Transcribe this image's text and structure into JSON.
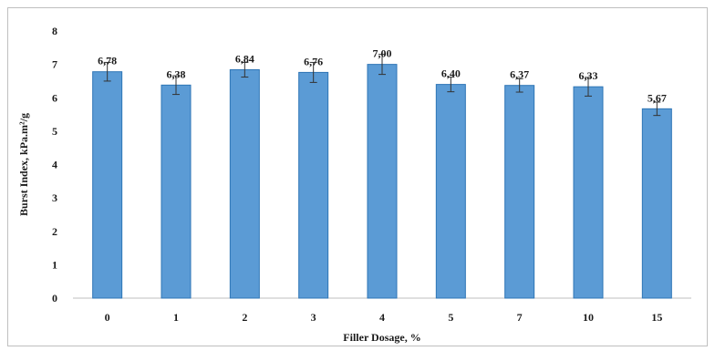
{
  "chart_data": {
    "type": "bar",
    "title": "",
    "xlabel": "Filler Dosage, %",
    "ylabel": "Burst Index, kPa.m²/g",
    "categories": [
      "0",
      "1",
      "2",
      "3",
      "4",
      "5",
      "7",
      "10",
      "15"
    ],
    "values": [
      6.78,
      6.38,
      6.84,
      6.76,
      7.0,
      6.4,
      6.37,
      6.33,
      5.67
    ],
    "value_labels": [
      "6,78",
      "6,38",
      "6,84",
      "6,76",
      "7,00",
      "6,40",
      "6,37",
      "6,33",
      "5,67"
    ],
    "error": [
      0.28,
      0.28,
      0.22,
      0.3,
      0.3,
      0.22,
      0.2,
      0.28,
      0.2
    ],
    "ylim": [
      0,
      8
    ],
    "yticks": [
      "0",
      "1",
      "2",
      "3",
      "4",
      "5",
      "6",
      "7",
      "8"
    ],
    "grid": false,
    "legend": "none",
    "colors": {
      "bar": "#5b9bd5",
      "bar_edge": "#2e75b6",
      "axis": "#bfbfbf",
      "error_bar": "#333333"
    }
  }
}
